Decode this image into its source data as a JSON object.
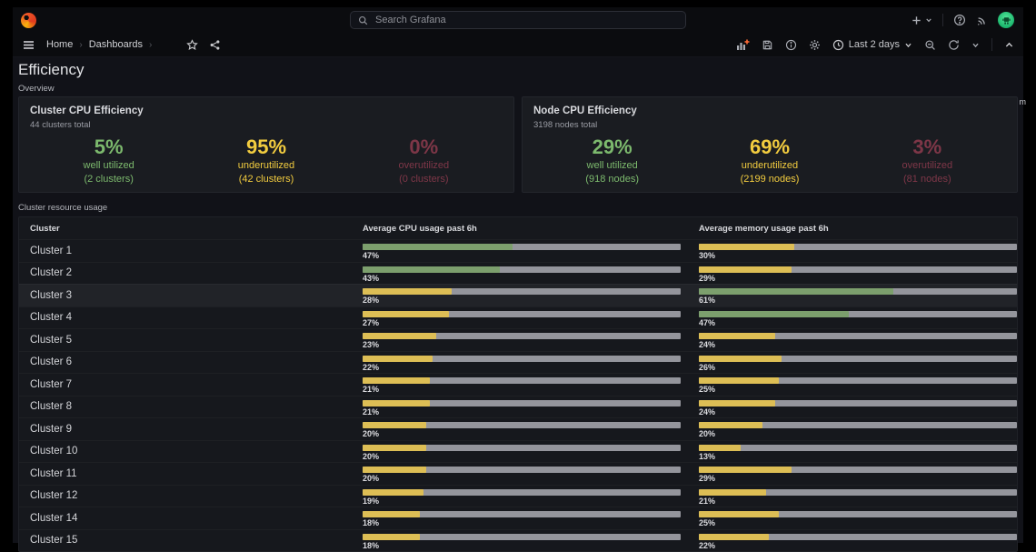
{
  "chrome": {
    "search": {
      "placeholder": "Search Grafana"
    },
    "breadcrumb": {
      "items": [
        "Home",
        "Dashboards"
      ]
    },
    "time_range": "Last 2 days",
    "clipped_right_text": "m",
    "icons": {
      "logo": "grafana-flame",
      "search": "magnifier",
      "new": "plus + caret",
      "help": "question-circle",
      "news": "rss",
      "profile": "green-avatar",
      "menu": "hamburger",
      "favorite": "star-outline",
      "share": "share-nodes",
      "add_panel": "bar-chart-plus",
      "save": "floppy",
      "panel_info": "info-circle",
      "settings": "gear",
      "time": "clock",
      "zoom_out": "magnifier-minus",
      "refresh": "cycle-arrows",
      "collapse": "chevron-up"
    }
  },
  "page": {
    "title": "Efficiency",
    "overview_label": "Overview",
    "usage_label": "Cluster resource usage"
  },
  "panels": [
    {
      "title": "Cluster CPU Efficiency",
      "subtitle": "44 clusters total",
      "stats": [
        {
          "value": "5%",
          "label": "well utilized",
          "sub": "(2 clusters)",
          "level": "green"
        },
        {
          "value": "95%",
          "label": "underutilized",
          "sub": "(42 clusters)",
          "level": "yellow"
        },
        {
          "value": "0%",
          "label": "overutilized",
          "sub": "(0 clusters)",
          "level": "red"
        }
      ]
    },
    {
      "title": "Node CPU Efficiency",
      "subtitle": "3198 nodes total",
      "stats": [
        {
          "value": "29%",
          "label": "well utilized",
          "sub": "(918 nodes)",
          "level": "green"
        },
        {
          "value": "69%",
          "label": "underutilized",
          "sub": "(2199 nodes)",
          "level": "yellow"
        },
        {
          "value": "3%",
          "label": "overutilized",
          "sub": "(81 nodes)",
          "level": "red"
        }
      ]
    }
  ],
  "table": {
    "columns": [
      "Cluster",
      "Average CPU usage past 6h",
      "Average memory usage past 6h"
    ],
    "rows": [
      {
        "cluster": "Cluster 1",
        "cpu": 47,
        "cpu_level": "green",
        "mem": 30,
        "mem_level": "yellow",
        "highlight": false
      },
      {
        "cluster": "Cluster 2",
        "cpu": 43,
        "cpu_level": "green",
        "mem": 29,
        "mem_level": "yellow",
        "highlight": false
      },
      {
        "cluster": "Cluster 3",
        "cpu": 28,
        "cpu_level": "yellow",
        "mem": 61,
        "mem_level": "green",
        "highlight": true
      },
      {
        "cluster": "Cluster 4",
        "cpu": 27,
        "cpu_level": "yellow",
        "mem": 47,
        "mem_level": "green",
        "highlight": false
      },
      {
        "cluster": "Cluster 5",
        "cpu": 23,
        "cpu_level": "yellow",
        "mem": 24,
        "mem_level": "yellow",
        "highlight": false
      },
      {
        "cluster": "Cluster 6",
        "cpu": 22,
        "cpu_level": "yellow",
        "mem": 26,
        "mem_level": "yellow",
        "highlight": false
      },
      {
        "cluster": "Cluster 7",
        "cpu": 21,
        "cpu_level": "yellow",
        "mem": 25,
        "mem_level": "yellow",
        "highlight": false
      },
      {
        "cluster": "Cluster 8",
        "cpu": 21,
        "cpu_level": "yellow",
        "mem": 24,
        "mem_level": "yellow",
        "highlight": false
      },
      {
        "cluster": "Cluster 9",
        "cpu": 20,
        "cpu_level": "yellow",
        "mem": 20,
        "mem_level": "yellow",
        "highlight": false
      },
      {
        "cluster": "Cluster 10",
        "cpu": 20,
        "cpu_level": "yellow",
        "mem": 13,
        "mem_level": "yellow",
        "highlight": false
      },
      {
        "cluster": "Cluster 11",
        "cpu": 20,
        "cpu_level": "yellow",
        "mem": 29,
        "mem_level": "yellow",
        "highlight": false
      },
      {
        "cluster": "Cluster 12",
        "cpu": 19,
        "cpu_level": "yellow",
        "mem": 21,
        "mem_level": "yellow",
        "highlight": false
      },
      {
        "cluster": "Cluster 14",
        "cpu": 18,
        "cpu_level": "yellow",
        "mem": 25,
        "mem_level": "yellow",
        "highlight": false
      },
      {
        "cluster": "Cluster 15",
        "cpu": 18,
        "cpu_level": "yellow",
        "mem": 22,
        "mem_level": "yellow",
        "highlight": false
      }
    ]
  },
  "colors": {
    "stat_green": "#7CB96D",
    "stat_yellow": "#F2CC3F",
    "stat_red": "#E0516E",
    "bar_green": "#7C9F6D",
    "bar_yellow": "#DDBE55",
    "bar_track": "#94959C"
  }
}
